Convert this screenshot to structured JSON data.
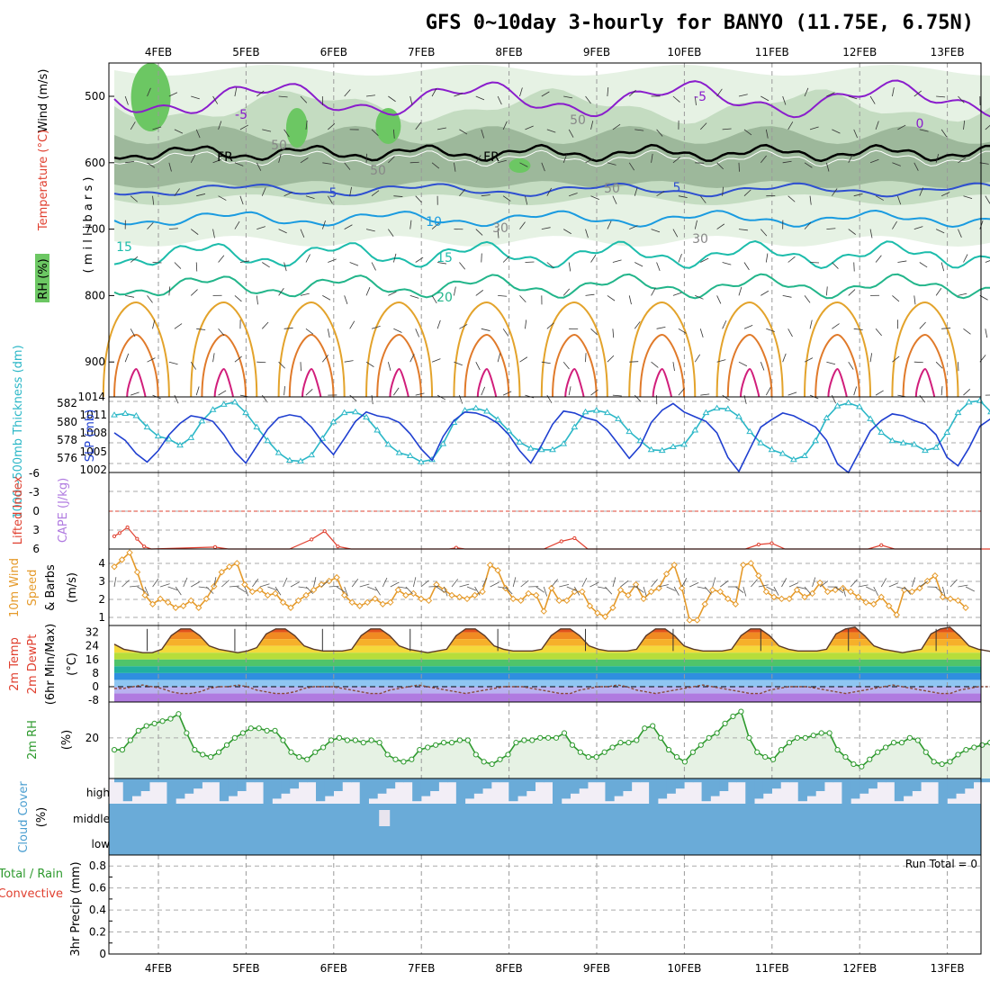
{
  "title": "GFS 0~10day 3-hourly for BANYO (11.75E, 6.75N)",
  "dates": [
    "4FEB",
    "5FEB",
    "6FEB",
    "7FEB",
    "8FEB",
    "9FEB",
    "10FEB",
    "11FEB",
    "12FEB",
    "13FEB"
  ],
  "colors": {
    "rh_light": "#e6f2e4",
    "rh_mid": "#c4dcc1",
    "rh_dark": "#9db89b",
    "rh_green": "#6cc763",
    "temp_purple": "#8a1dcc",
    "temp_blue": "#2e4fd0",
    "temp_skyblue": "#1a9be0",
    "temp_teal": "#1cbcab",
    "temp_green": "#22b58a",
    "temp_orange": "#e3a32b",
    "temp_darkorange": "#e07a2a",
    "temp_magenta": "#d11e7b",
    "thickness": "#1f3fd0",
    "slp": "#2bb7c7",
    "lifted": "#e04030",
    "wind": "#e59a2a",
    "temp2m": "#e85a1c",
    "rh2m": "#2e9a2e",
    "cloud": "#6aabd8"
  },
  "panels": {
    "upper": {
      "ylabel_wind": "Wind (m/s)",
      "ylabel_temp": "Temperature (°C)",
      "ylabel_rh": "RH (%)",
      "ylabel_p": "( m i l l i b a r s )",
      "pressure_ticks": [
        "500",
        "600",
        "700",
        "800",
        "900",
        "1014"
      ],
      "contour_labels": {
        "m5a": "-5",
        "m5b": "-5",
        "zero": "0",
        "fr1": "FR",
        "fr2": "FR",
        "p5a": "5",
        "p5b": "5",
        "p10": "10",
        "p15a": "15",
        "p15b": "15",
        "p20": "20",
        "rh50a": "50",
        "rh50b": "50",
        "rh50c": "50",
        "rh50d": "50",
        "rh30a": "30",
        "rh30b": "30"
      }
    },
    "thickness": {
      "ylabel_left": "1000~500mb Thickness (dm)",
      "ylabel_right": "SLP (mb)",
      "left_ticks": [
        "582",
        "580",
        "578",
        "576"
      ],
      "right_ticks": [
        "1011",
        "1008",
        "1005",
        "1002"
      ]
    },
    "cape": {
      "ylabel_li": "Lifted Index",
      "ylabel_cape": "CAPE (J/kg)",
      "ticks": [
        "-6",
        "-3",
        "0",
        "3",
        "6"
      ]
    },
    "wind10": {
      "ylabel_a": "10m Wind",
      "ylabel_b": "Speed",
      "ylabel_c": "& Barbs",
      "ylabel_unit": "(m/s)",
      "ticks": [
        "4",
        "3",
        "2",
        "1"
      ]
    },
    "temp2m": {
      "ylabel_a": "2m Temp",
      "ylabel_b": "2m DewPt",
      "ylabel_c": "(6hr Min/Max)",
      "ylabel_unit": "(°C)",
      "ticks": [
        "32",
        "24",
        "16",
        "8",
        "0",
        "-8"
      ]
    },
    "rh2m": {
      "ylabel": "2m RH",
      "ylabel_unit": "(%)",
      "ticks": [
        "20"
      ]
    },
    "cloud": {
      "ylabel": "Cloud Cover",
      "ylabel_unit": "(%)",
      "levels": [
        "high",
        "middle",
        "low"
      ]
    },
    "precip": {
      "ylabel_a": "Total / Rain",
      "ylabel_b": "Convective",
      "ylabel_c": "3hr Precip (mm)",
      "ticks": [
        "0.8",
        "0.6",
        "0.4",
        "0.2",
        "0"
      ],
      "run_total": "Run Total = 0"
    }
  },
  "chart_data": [
    {
      "type": "line",
      "name": "1000~500mb Thickness (dm)",
      "ylim": [
        575,
        583
      ],
      "step_hours": 3,
      "values": [
        579.2,
        578.4,
        577.0,
        576.1,
        577.3,
        579.0,
        580.2,
        581.0,
        580.8,
        580.4,
        579.0,
        577.2,
        576.0,
        577.8,
        579.6,
        580.8,
        581.1,
        580.9,
        579.8,
        578.2,
        576.9,
        578.6,
        580.4,
        581.4,
        581.0,
        580.8,
        580.3,
        579.1,
        577.5,
        576.3,
        578.8,
        580.5,
        581.4,
        581.3,
        580.9,
        580.2,
        579.0,
        577.3,
        576.0,
        577.9,
        580.1,
        581.5,
        581.3,
        580.8,
        580.5,
        579.5,
        578.0,
        576.5,
        577.8,
        580.3,
        581.6,
        582.3,
        581.4,
        580.9,
        580.4,
        579.2,
        576.6,
        575.1,
        577.5,
        579.8,
        580.6,
        581.3,
        581.0,
        580.4,
        579.8,
        578.4,
        575.9,
        574.9,
        577.2,
        579.4,
        580.5,
        581.2,
        581.0,
        580.5,
        580.1,
        579.0,
        576.6,
        575.7,
        577.6,
        579.9,
        580.7,
        581.1,
        580.3,
        579.5,
        580.1,
        579.8,
        577.9,
        575.0,
        577.1,
        579.1,
        580.6,
        580.4,
        579.7,
        579.9,
        580.1,
        579.8,
        577.8,
        576.0,
        578.3,
        579.8,
        580.0,
        580.3,
        580.7,
        581.2
      ]
    },
    {
      "type": "line",
      "name": "SLP (mb)",
      "ylim": [
        1002,
        1012
      ],
      "step_hours": 3,
      "values": [
        1009.6,
        1009.8,
        1009.5,
        1008.0,
        1006.8,
        1006.4,
        1005.6,
        1006.6,
        1008.8,
        1010.3,
        1011.0,
        1011.3,
        1009.9,
        1008.0,
        1006.2,
        1004.6,
        1003.6,
        1003.5,
        1004.3,
        1006.5,
        1008.7,
        1009.9,
        1010.0,
        1009.3,
        1007.6,
        1005.7,
        1004.6,
        1004.2,
        1003.4,
        1003.7,
        1005.8,
        1008.6,
        1010.2,
        1010.5,
        1010.1,
        1009.0,
        1007.5,
        1006.0,
        1005.2,
        1005.0,
        1005.0,
        1005.8,
        1008.0,
        1010.0,
        1010.2,
        1009.9,
        1009.1,
        1007.4,
        1006.2,
        1005.0,
        1004.9,
        1005.4,
        1005.7,
        1007.6,
        1009.9,
        1010.5,
        1010.4,
        1009.4,
        1007.4,
        1005.9,
        1005.0,
        1004.5,
        1003.7,
        1004.2,
        1006.2,
        1009.2,
        1010.8,
        1011.2,
        1010.7,
        1009.1,
        1007.3,
        1006.2,
        1005.9,
        1005.7,
        1004.9,
        1005.3,
        1007.3,
        1009.9,
        1011.3,
        1011.5,
        1010.0,
        1008.4,
        1007.1,
        1006.2,
        1005.9,
        1005.6,
        1005.1,
        1005.8,
        1008.2,
        1011.1,
        1012.1,
        1011.7,
        1010.6,
        1008.9,
        1007.7,
        1006.8,
        1006.5,
        1006.0,
        1005.6,
        1006.2,
        1008.0,
        1009.1,
        1007.5,
        1006.4,
        1005.6,
        1004.5
      ]
    },
    {
      "type": "line",
      "name": "Lifted Index",
      "ylim": [
        6,
        -6
      ],
      "points": [
        [
          0,
          4
        ],
        [
          0.6,
          3.5
        ],
        [
          1.5,
          2.6
        ],
        [
          2.6,
          4.4
        ],
        [
          3.4,
          5.6
        ],
        [
          4.2,
          6
        ],
        [
          11.5,
          5.7
        ],
        [
          13,
          6
        ],
        [
          20,
          6
        ],
        [
          22.5,
          4.5
        ],
        [
          24,
          3.2
        ],
        [
          25.5,
          5.6
        ],
        [
          27,
          6
        ],
        [
          38.2,
          6
        ],
        [
          39,
          5.8
        ],
        [
          40,
          6
        ],
        [
          49,
          6
        ],
        [
          51,
          4.8
        ],
        [
          52.5,
          4.3
        ],
        [
          54,
          6
        ],
        [
          72,
          6
        ],
        [
          73.5,
          5.3
        ],
        [
          75,
          5.1
        ],
        [
          76.5,
          6
        ],
        [
          86,
          6
        ],
        [
          87.5,
          5.4
        ],
        [
          89,
          6
        ],
        [
          103,
          6
        ]
      ]
    },
    {
      "type": "line",
      "name": "10m Wind Speed (m/s)",
      "ylim": [
        0.5,
        4.8
      ],
      "step_hours": 3,
      "values": [
        3.8,
        4.2,
        4.6,
        3.5,
        2.2,
        1.7,
        2.0,
        1.8,
        1.5,
        1.6,
        1.9,
        1.5,
        2.0,
        2.7,
        3.5,
        3.8,
        4.0,
        2.8,
        2.4,
        2.5,
        2.2,
        2.3,
        1.8,
        1.5,
        1.9,
        2.2,
        2.5,
        2.8,
        3.0,
        3.2,
        2.2,
        1.8,
        1.6,
        1.8,
        2.0,
        1.7,
        1.8,
        2.5,
        2.2,
        2.3,
        2.0,
        1.9,
        2.8,
        2.5,
        2.2,
        2.1,
        2.0,
        2.2,
        2.4,
        3.9,
        3.6,
        2.6,
        2.0,
        1.9,
        2.3,
        2.2,
        1.3,
        2.6,
        1.9,
        1.9,
        2.4,
        2.4,
        1.6,
        1.2,
        1.0,
        1.5,
        2.5,
        2.2,
        2.8,
        2.0,
        2.4,
        2.6,
        3.4,
        3.9,
        2.6,
        0.8,
        0.8,
        1.7,
        2.5,
        2.4,
        2.0,
        1.7,
        3.9,
        4.0,
        3.3,
        2.4,
        2.1,
        2.0,
        2.0,
        2.5,
        2.1,
        2.3,
        2.9,
        2.4,
        2.5,
        2.6,
        2.4,
        2.1,
        1.8,
        1.7,
        2.1,
        1.6,
        1.1,
        2.5,
        2.4,
        2.6,
        3.0,
        3.3,
        2.1,
        2.0,
        1.9,
        1.5
      ]
    },
    {
      "type": "area",
      "name": "2m Temp (°C)",
      "ylim": [
        -9,
        36
      ],
      "step_hours": 3,
      "values": [
        25,
        22,
        21,
        20,
        20,
        22,
        30,
        34,
        34,
        30,
        24,
        22,
        21,
        20,
        21,
        23,
        31,
        34,
        34,
        30,
        24,
        22,
        21,
        21,
        21,
        22,
        30,
        34,
        34,
        30,
        24,
        22,
        21,
        20,
        21,
        22,
        30,
        34,
        34,
        30,
        24,
        22,
        21,
        21,
        21,
        22,
        30,
        34,
        34,
        30,
        24,
        22,
        21,
        21,
        21,
        22,
        30,
        34,
        34,
        30,
        24,
        22,
        21,
        21,
        21,
        22,
        30,
        34,
        34,
        30,
        24,
        22,
        21,
        21,
        21,
        22,
        31,
        34,
        35,
        30,
        24,
        22,
        21,
        20,
        21,
        22,
        31,
        34,
        35,
        30,
        24,
        22,
        21,
        20,
        21,
        20
      ]
    },
    {
      "type": "line",
      "name": "2m DewPt (°C)",
      "ylim": [
        -9,
        36
      ],
      "step_hours": 3,
      "values": [
        -1,
        -1,
        0,
        1,
        0,
        -1,
        -3,
        -4,
        -4,
        -3,
        -1,
        0,
        0,
        1,
        0,
        -2,
        -3,
        -4,
        -4,
        -3,
        -1,
        0,
        0,
        0,
        -1,
        -2,
        -3,
        -4,
        -4,
        -2,
        -1,
        0,
        1,
        0,
        -1,
        -2,
        -3,
        -4,
        -3,
        -2,
        -1,
        0,
        0,
        0,
        -1,
        -2,
        -3,
        -4,
        -4,
        -2,
        -1,
        0,
        0,
        1,
        0,
        -2,
        -3,
        -4,
        -3,
        -2,
        -1,
        0,
        1,
        0,
        -1,
        -2,
        -3,
        -4,
        -4,
        -2,
        -1,
        0,
        0,
        0,
        -1,
        -2,
        -3,
        -4,
        -3,
        -2,
        -1,
        0,
        1,
        0,
        -1,
        -2,
        -3,
        -4,
        -4,
        -2,
        -1,
        0,
        0,
        0,
        -1,
        -1
      ]
    },
    {
      "type": "area",
      "name": "2m RH (%)",
      "ylim": [
        3,
        35
      ],
      "step_hours": 3,
      "values": [
        15,
        15,
        19,
        23,
        25,
        26,
        27,
        28,
        30,
        22,
        15,
        13,
        12,
        14,
        17,
        20,
        22,
        24,
        24,
        23,
        23,
        19,
        14,
        12,
        11,
        14,
        16,
        19,
        20,
        19,
        19,
        18,
        19,
        18,
        13,
        11,
        10,
        11,
        15,
        16,
        17,
        18,
        18,
        19,
        19,
        13,
        10,
        9,
        11,
        13,
        18,
        19,
        19,
        20,
        20,
        20,
        22,
        17,
        14,
        12,
        12,
        14,
        16,
        18,
        18,
        19,
        24,
        25,
        20,
        15,
        12,
        10,
        14,
        17,
        20,
        22,
        26,
        29,
        31,
        20,
        14,
        12,
        11,
        15,
        18,
        20,
        20,
        21,
        22,
        22,
        15,
        12,
        9,
        8,
        11,
        14,
        16,
        18,
        18,
        20,
        19,
        14,
        10,
        9,
        10,
        13,
        15,
        16,
        17,
        18,
        19,
        20
      ]
    },
    {
      "type": "area",
      "name": "Cloud Cover (%)",
      "levels": [
        "high",
        "middle",
        "low"
      ],
      "note": "Low and middle cloud fully covered throughout; high cloud intermittent."
    },
    {
      "type": "bar",
      "name": "3hr Precip (mm)",
      "ylim": [
        0,
        0.9
      ],
      "values": [],
      "run_total": 0
    }
  ]
}
